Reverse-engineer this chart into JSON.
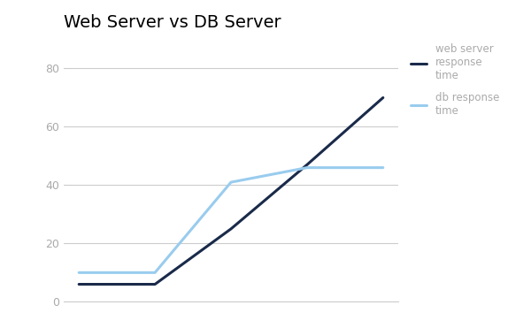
{
  "title": "Web Server vs DB Server",
  "title_fontsize": 14,
  "title_fontweight": "normal",
  "web_x": [
    0,
    1,
    2,
    3,
    4
  ],
  "web_y": [
    6,
    6,
    25,
    47,
    70
  ],
  "db_x": [
    0,
    1,
    2,
    3,
    4
  ],
  "db_y": [
    10,
    10,
    41,
    46,
    46
  ],
  "web_color": "#1a2a4a",
  "db_color": "#99ccee",
  "web_label": "web server\nresponse\ntime",
  "db_label": "db response\ntime",
  "ylim": [
    0,
    90
  ],
  "yticks": [
    0,
    20,
    40,
    60,
    80
  ],
  "linewidth": 2.2,
  "background_color": "#ffffff",
  "grid_color": "#cccccc",
  "tick_color": "#aaaaaa",
  "tick_fontsize": 9,
  "legend_fontsize": 8.5
}
